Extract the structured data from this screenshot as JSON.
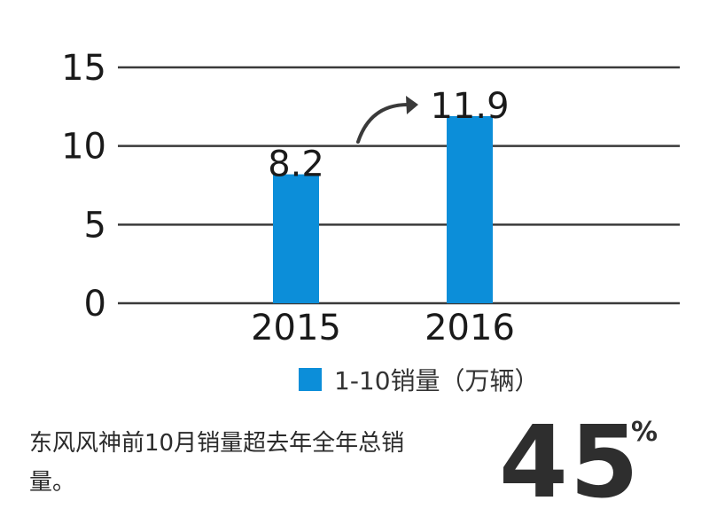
{
  "chart_data": {
    "type": "bar",
    "categories": [
      "2015",
      "2016"
    ],
    "values": [
      8.2,
      11.9
    ],
    "data_labels": [
      "8.2",
      "11.9"
    ],
    "yticks": [
      "0",
      "5",
      "10",
      "15"
    ],
    "ylim": [
      0,
      15
    ],
    "grid": true,
    "series": [
      {
        "name": "1-10销量（万辆）",
        "values": [
          8.2,
          11.9
        ]
      }
    ],
    "legend_position": "bottom",
    "bar_color": "#0c8ed9",
    "gridline_color": "#3a3a3a",
    "annotation_arrow": "curved arrow from 2015 bar toward 2016 bar"
  },
  "caption": "东风风神前10月销量超去年全年总销量。",
  "highlight": {
    "value": "45",
    "unit": "%"
  }
}
